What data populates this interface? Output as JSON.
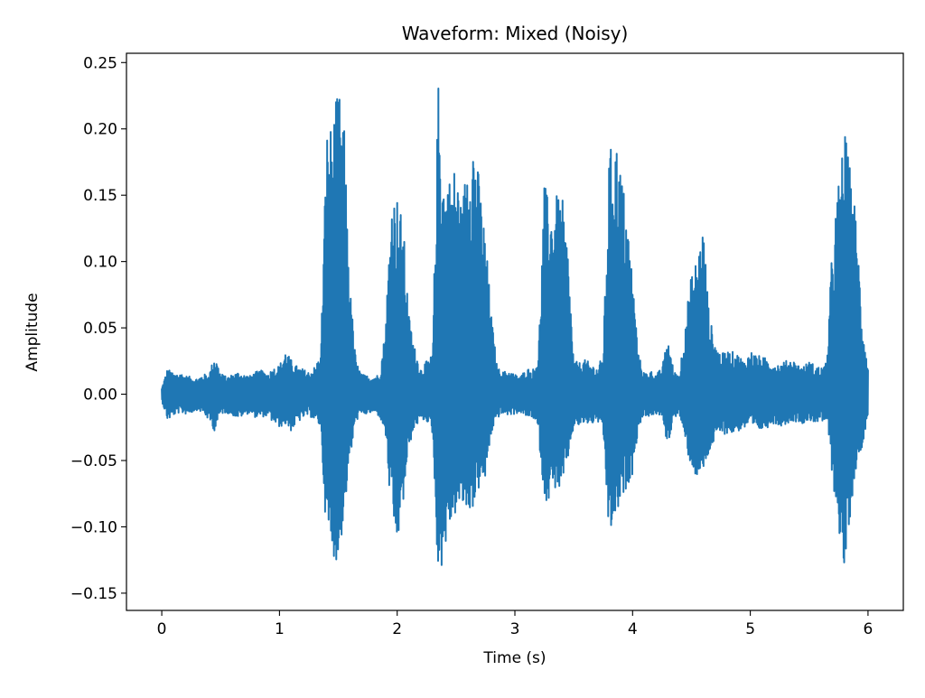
{
  "chart_data": {
    "type": "line",
    "title": "Waveform: Mixed (Noisy)",
    "xlabel": "Time (s)",
    "ylabel": "Amplitude",
    "xlim": [
      -0.3,
      6.3
    ],
    "ylim": [
      -0.163,
      0.257
    ],
    "x_ticks": [
      0,
      1,
      2,
      3,
      4,
      5,
      6
    ],
    "x_tick_labels": [
      "0",
      "1",
      "2",
      "3",
      "4",
      "5",
      "6"
    ],
    "y_ticks": [
      0.25,
      0.2,
      0.15,
      0.1,
      0.05,
      0.0,
      -0.05,
      -0.1,
      -0.15
    ],
    "y_tick_labels": [
      "0.25",
      "0.20",
      "0.15",
      "0.10",
      "0.05",
      "0.00",
      "−0.05",
      "−0.10",
      "−0.15"
    ],
    "grid": false,
    "line_color": "#1f77b4",
    "series": [
      {
        "color": "#1f77b4",
        "envelope": {
          "t": [
            0.0,
            0.05,
            0.1,
            0.15,
            0.2,
            0.25,
            0.3,
            0.35,
            0.4,
            0.45,
            0.5,
            0.55,
            0.6,
            0.65,
            0.7,
            0.75,
            0.8,
            0.85,
            0.9,
            0.95,
            1.0,
            1.05,
            1.1,
            1.15,
            1.2,
            1.25,
            1.3,
            1.35,
            1.4,
            1.45,
            1.5,
            1.55,
            1.6,
            1.65,
            1.7,
            1.75,
            1.8,
            1.85,
            1.9,
            1.95,
            2.0,
            2.05,
            2.1,
            2.15,
            2.2,
            2.25,
            2.3,
            2.35,
            2.4,
            2.45,
            2.5,
            2.55,
            2.6,
            2.65,
            2.7,
            2.75,
            2.8,
            2.85,
            2.9,
            2.95,
            3.0,
            3.05,
            3.1,
            3.15,
            3.2,
            3.25,
            3.3,
            3.35,
            3.4,
            3.45,
            3.5,
            3.55,
            3.6,
            3.65,
            3.7,
            3.75,
            3.8,
            3.85,
            3.9,
            3.95,
            4.0,
            4.05,
            4.1,
            4.15,
            4.2,
            4.25,
            4.3,
            4.35,
            4.4,
            4.45,
            4.5,
            4.55,
            4.6,
            4.65,
            4.7,
            4.75,
            4.8,
            4.85,
            4.9,
            4.95,
            5.0,
            5.05,
            5.1,
            5.15,
            5.2,
            5.25,
            5.3,
            5.35,
            5.4,
            5.45,
            5.5,
            5.55,
            5.6,
            5.65,
            5.7,
            5.75,
            5.8,
            5.85,
            5.9,
            5.95,
            6.0
          ],
          "upper": [
            0.005,
            0.02,
            0.015,
            0.017,
            0.014,
            0.013,
            0.012,
            0.015,
            0.015,
            0.03,
            0.016,
            0.013,
            0.015,
            0.017,
            0.015,
            0.014,
            0.017,
            0.018,
            0.016,
            0.02,
            0.022,
            0.033,
            0.026,
            0.021,
            0.019,
            0.017,
            0.021,
            0.03,
            0.2,
            0.205,
            0.232,
            0.2,
            0.08,
            0.025,
            0.015,
            0.014,
            0.014,
            0.015,
            0.05,
            0.15,
            0.15,
            0.13,
            0.06,
            0.035,
            0.02,
            0.025,
            0.03,
            0.237,
            0.16,
            0.165,
            0.175,
            0.14,
            0.19,
            0.2,
            0.16,
            0.12,
            0.06,
            0.02,
            0.017,
            0.018,
            0.015,
            0.014,
            0.02,
            0.018,
            0.03,
            0.16,
            0.14,
            0.15,
            0.15,
            0.11,
            0.025,
            0.024,
            0.026,
            0.023,
            0.02,
            0.03,
            0.18,
            0.2,
            0.17,
            0.14,
            0.09,
            0.03,
            0.016,
            0.018,
            0.015,
            0.02,
            0.044,
            0.017,
            0.016,
            0.06,
            0.09,
            0.105,
            0.13,
            0.06,
            0.04,
            0.03,
            0.033,
            0.032,
            0.03,
            0.025,
            0.033,
            0.03,
            0.028,
            0.027,
            0.024,
            0.023,
            0.025,
            0.027,
            0.023,
            0.021,
            0.025,
            0.022,
            0.02,
            0.024,
            0.12,
            0.16,
            0.2,
            0.17,
            0.135,
            0.06,
            0.02
          ],
          "lower": [
            -0.005,
            -0.02,
            -0.016,
            -0.014,
            -0.015,
            -0.014,
            -0.012,
            -0.014,
            -0.02,
            -0.028,
            -0.015,
            -0.014,
            -0.016,
            -0.018,
            -0.016,
            -0.014,
            -0.018,
            -0.017,
            -0.017,
            -0.022,
            -0.025,
            -0.023,
            -0.028,
            -0.022,
            -0.018,
            -0.016,
            -0.02,
            -0.025,
            -0.11,
            -0.12,
            -0.13,
            -0.09,
            -0.05,
            -0.02,
            -0.016,
            -0.015,
            -0.014,
            -0.017,
            -0.03,
            -0.095,
            -0.115,
            -0.085,
            -0.04,
            -0.025,
            -0.02,
            -0.02,
            -0.03,
            -0.143,
            -0.12,
            -0.1,
            -0.09,
            -0.085,
            -0.09,
            -0.085,
            -0.07,
            -0.065,
            -0.03,
            -0.018,
            -0.015,
            -0.016,
            -0.015,
            -0.014,
            -0.018,
            -0.017,
            -0.03,
            -0.08,
            -0.08,
            -0.07,
            -0.075,
            -0.05,
            -0.025,
            -0.024,
            -0.022,
            -0.023,
            -0.02,
            -0.03,
            -0.11,
            -0.095,
            -0.085,
            -0.07,
            -0.06,
            -0.025,
            -0.016,
            -0.017,
            -0.015,
            -0.018,
            -0.04,
            -0.017,
            -0.016,
            -0.04,
            -0.055,
            -0.065,
            -0.06,
            -0.045,
            -0.035,
            -0.03,
            -0.03,
            -0.03,
            -0.028,
            -0.026,
            -0.025,
            -0.028,
            -0.027,
            -0.025,
            -0.022,
            -0.024,
            -0.023,
            -0.02,
            -0.021,
            -0.022,
            -0.02,
            -0.021,
            -0.022,
            -0.02,
            -0.065,
            -0.1,
            -0.142,
            -0.09,
            -0.055,
            -0.04,
            -0.015
          ]
        }
      }
    ]
  }
}
